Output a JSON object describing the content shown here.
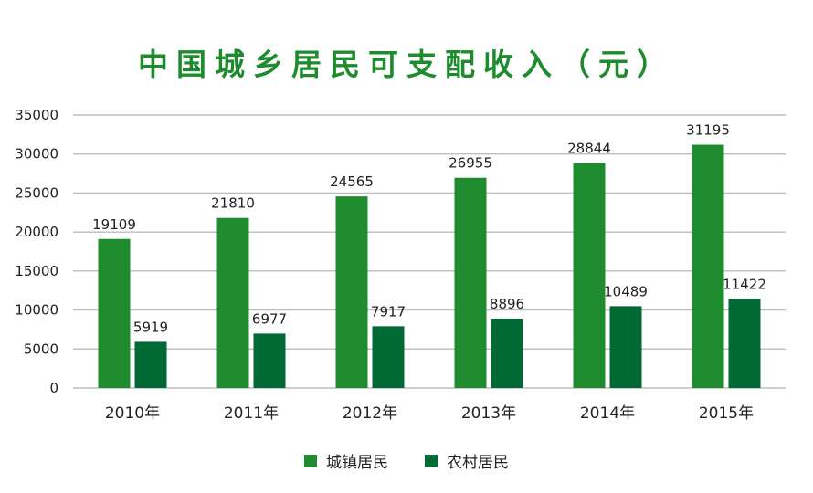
{
  "chart_data": {
    "type": "bar",
    "title": "中国城乡居民可支配收入（元）",
    "categories": [
      "2010年",
      "2011年",
      "2012年",
      "2013年",
      "2014年",
      "2015年"
    ],
    "series": [
      {
        "name": "城镇居民",
        "values": [
          19109,
          21810,
          24565,
          26955,
          28844,
          31195
        ],
        "color": "#1e8c2e"
      },
      {
        "name": "农村居民",
        "values": [
          5919,
          6977,
          7917,
          8896,
          10489,
          11422
        ],
        "color": "#006934"
      }
    ],
    "ylim": [
      0,
      35000
    ],
    "yticks": [
      0,
      5000,
      10000,
      15000,
      20000,
      25000,
      30000,
      35000
    ],
    "grid": true,
    "legend": "bottom-center"
  }
}
